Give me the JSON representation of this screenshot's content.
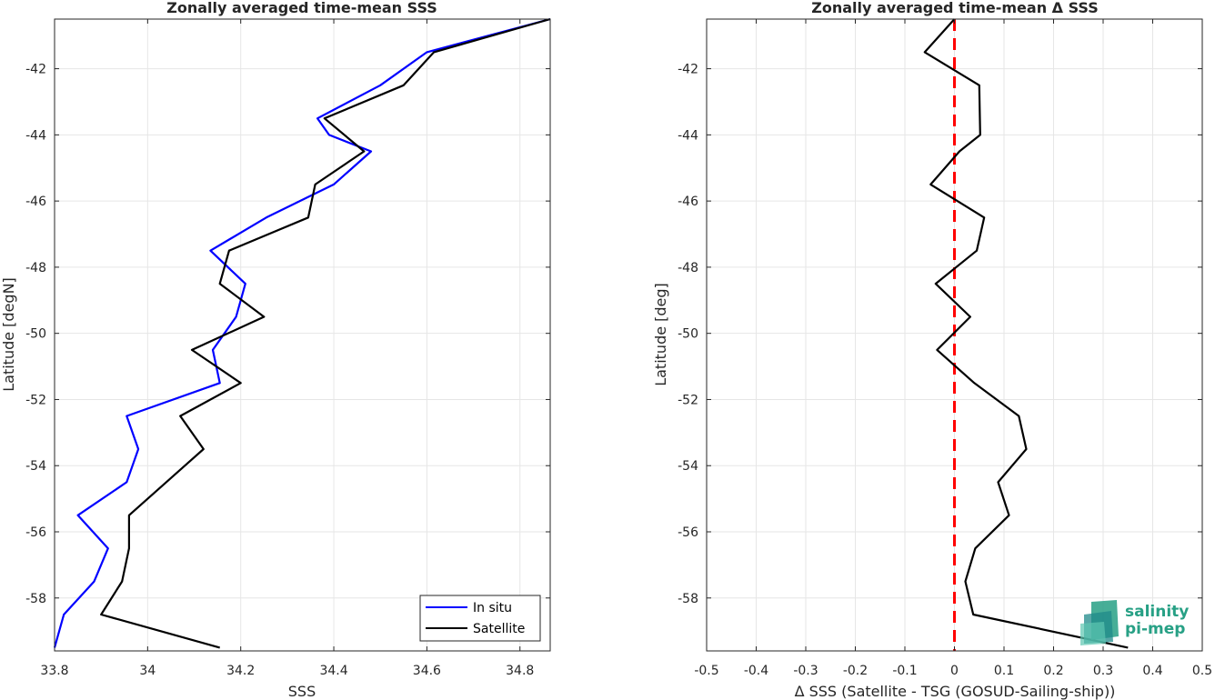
{
  "chart_data": [
    {
      "type": "line",
      "title": "Zonally averaged time-mean SSS",
      "xlabel": "SSS",
      "ylabel": "Latitude [degN]",
      "xlim": [
        33.8,
        34.865
      ],
      "ylim": [
        -59.6,
        -40.5
      ],
      "xticks": [
        33.8,
        34,
        34.2,
        34.4,
        34.6,
        34.8
      ],
      "xtick_labels": [
        "33.8",
        "34",
        "34.2",
        "34.4",
        "34.6",
        "34.8"
      ],
      "yticks": [
        -42,
        -44,
        -46,
        -48,
        -50,
        -52,
        -54,
        -56,
        -58
      ],
      "ytick_labels": [
        "-42",
        "-44",
        "-46",
        "-48",
        "-50",
        "-52",
        "-54",
        "-56",
        "-58"
      ],
      "grid": true,
      "legend": "bottom-right",
      "series": [
        {
          "name": "In situ",
          "color": "#0000ff",
          "points": [
            [
              34.865,
              -40.5
            ],
            [
              34.6,
              -41.5
            ],
            [
              34.5,
              -42.5
            ],
            [
              34.365,
              -43.5
            ],
            [
              34.39,
              -44.0
            ],
            [
              34.48,
              -44.5
            ],
            [
              34.4,
              -45.5
            ],
            [
              34.255,
              -46.5
            ],
            [
              34.135,
              -47.5
            ],
            [
              34.21,
              -48.5
            ],
            [
              34.19,
              -49.5
            ],
            [
              34.14,
              -50.5
            ],
            [
              34.155,
              -51.5
            ],
            [
              33.955,
              -52.5
            ],
            [
              33.98,
              -53.5
            ],
            [
              33.955,
              -54.5
            ],
            [
              33.85,
              -55.5
            ],
            [
              33.915,
              -56.5
            ],
            [
              33.885,
              -57.5
            ],
            [
              33.82,
              -58.5
            ],
            [
              33.8,
              -59.5
            ]
          ]
        },
        {
          "name": "Satellite",
          "color": "#000000",
          "points": [
            [
              34.865,
              -40.5
            ],
            [
              34.615,
              -41.5
            ],
            [
              34.55,
              -42.5
            ],
            [
              34.38,
              -43.5
            ],
            [
              34.465,
              -44.5
            ],
            [
              34.36,
              -45.5
            ],
            [
              34.345,
              -46.5
            ],
            [
              34.175,
              -47.5
            ],
            [
              34.155,
              -48.5
            ],
            [
              34.25,
              -49.5
            ],
            [
              34.095,
              -50.5
            ],
            [
              34.2,
              -51.5
            ],
            [
              34.07,
              -52.5
            ],
            [
              34.12,
              -53.5
            ],
            [
              34.04,
              -54.5
            ],
            [
              33.96,
              -55.5
            ],
            [
              33.96,
              -56.5
            ],
            [
              33.945,
              -57.5
            ],
            [
              33.9,
              -58.5
            ],
            [
              34.155,
              -59.5
            ]
          ]
        }
      ]
    },
    {
      "type": "line",
      "title": "Zonally averaged time-mean Δ SSS",
      "xlabel": "Δ SSS (Satellite - TSG (GOSUD-Sailing-ship))",
      "ylabel": "Latitude [deg]",
      "xlim": [
        -0.5,
        0.5
      ],
      "ylim": [
        -59.6,
        -40.5
      ],
      "xticks": [
        -0.5,
        -0.4,
        -0.3,
        -0.2,
        -0.1,
        0,
        0.1,
        0.2,
        0.3,
        0.4,
        0.5
      ],
      "xtick_labels": [
        "-0.5",
        "-0.4",
        "-0.3",
        "-0.2",
        "-0.1",
        "0",
        "0.1",
        "0.2",
        "0.3",
        "0.4",
        "0.5"
      ],
      "yticks": [
        -42,
        -44,
        -46,
        -48,
        -50,
        -52,
        -54,
        -56,
        -58
      ],
      "ytick_labels": [
        "-42",
        "-44",
        "-46",
        "-48",
        "-50",
        "-52",
        "-54",
        "-56",
        "-58"
      ],
      "grid": true,
      "reference_line": {
        "x": 0,
        "color": "#ff0000",
        "style": "dashed"
      },
      "series": [
        {
          "color": "#000000",
          "points": [
            [
              0.0,
              -40.5
            ],
            [
              -0.06,
              -41.5
            ],
            [
              0.05,
              -42.5
            ],
            [
              0.052,
              -44.0
            ],
            [
              0.01,
              -44.5
            ],
            [
              -0.048,
              -45.5
            ],
            [
              0.06,
              -46.5
            ],
            [
              0.045,
              -47.5
            ],
            [
              -0.038,
              -48.5
            ],
            [
              0.032,
              -49.5
            ],
            [
              -0.035,
              -50.5
            ],
            [
              0.04,
              -51.5
            ],
            [
              0.13,
              -52.5
            ],
            [
              0.145,
              -53.5
            ],
            [
              0.088,
              -54.5
            ],
            [
              0.11,
              -55.5
            ],
            [
              0.042,
              -56.5
            ],
            [
              0.022,
              -57.5
            ],
            [
              0.038,
              -58.5
            ],
            [
              0.35,
              -59.5
            ]
          ]
        }
      ]
    }
  ],
  "logo": {
    "line1": "salinity",
    "line2": "pi-mep",
    "color": "#27a085"
  }
}
